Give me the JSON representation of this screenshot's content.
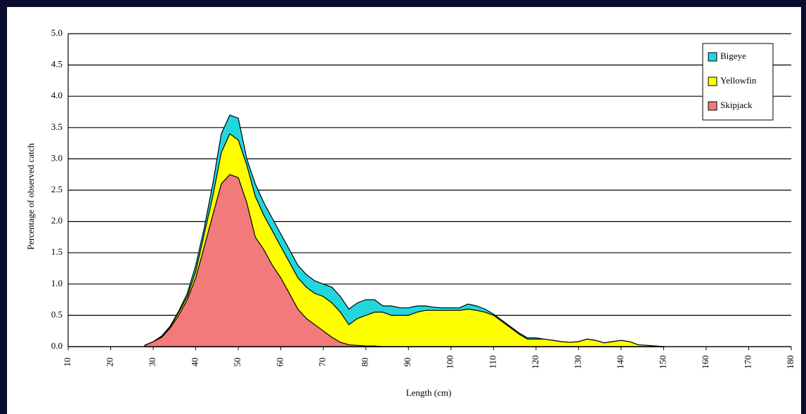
{
  "chart_data": {
    "type": "stacked-area",
    "x_label": "Length (cm)",
    "y_label": "Percentage of observed catch",
    "x": [
      28,
      30,
      32,
      34,
      36,
      38,
      40,
      42,
      44,
      46,
      48,
      50,
      52,
      54,
      56,
      58,
      60,
      62,
      64,
      66,
      68,
      70,
      72,
      74,
      76,
      78,
      80,
      82,
      84,
      86,
      88,
      90,
      92,
      94,
      96,
      98,
      100,
      102,
      104,
      106,
      108,
      110,
      112,
      114,
      116,
      118,
      120,
      122,
      124,
      126,
      128,
      130,
      132,
      134,
      136,
      138,
      140,
      142,
      144,
      146,
      148,
      150
    ],
    "series": [
      {
        "name": "Skipjack",
        "color": "#f27a7a",
        "values": [
          0.02,
          0.08,
          0.15,
          0.3,
          0.5,
          0.75,
          1.1,
          1.6,
          2.1,
          2.6,
          2.75,
          2.7,
          2.3,
          1.75,
          1.55,
          1.3,
          1.1,
          0.85,
          0.6,
          0.45,
          0.35,
          0.25,
          0.15,
          0.07,
          0.03,
          0.02,
          0.01,
          0.01,
          0,
          0,
          0,
          0,
          0,
          0,
          0,
          0,
          0,
          0,
          0,
          0,
          0,
          0,
          0,
          0,
          0,
          0,
          0,
          0,
          0,
          0,
          0,
          0,
          0,
          0,
          0,
          0,
          0,
          0,
          0,
          0,
          0,
          0
        ]
      },
      {
        "name": "Yellowfin",
        "color": "#ffff00",
        "values": [
          0,
          0,
          0.01,
          0.02,
          0.05,
          0.05,
          0.1,
          0.2,
          0.3,
          0.5,
          0.65,
          0.6,
          0.6,
          0.65,
          0.55,
          0.55,
          0.5,
          0.5,
          0.5,
          0.5,
          0.5,
          0.55,
          0.55,
          0.48,
          0.32,
          0.43,
          0.49,
          0.54,
          0.55,
          0.5,
          0.5,
          0.5,
          0.55,
          0.58,
          0.58,
          0.58,
          0.58,
          0.58,
          0.6,
          0.58,
          0.55,
          0.5,
          0.4,
          0.3,
          0.2,
          0.12,
          0.12,
          0.12,
          0.1,
          0.08,
          0.07,
          0.08,
          0.12,
          0.1,
          0.06,
          0.08,
          0.1,
          0.08,
          0.03,
          0.02,
          0.01,
          0
        ]
      },
      {
        "name": "Bigeye",
        "color": "#22d6de",
        "values": [
          0,
          0,
          0.01,
          0.01,
          0.02,
          0.05,
          0.1,
          0.1,
          0.2,
          0.3,
          0.3,
          0.35,
          0.1,
          0.2,
          0.2,
          0.2,
          0.2,
          0.2,
          0.2,
          0.2,
          0.2,
          0.2,
          0.25,
          0.25,
          0.25,
          0.25,
          0.25,
          0.2,
          0.1,
          0.15,
          0.12,
          0.12,
          0.1,
          0.07,
          0.05,
          0.04,
          0.04,
          0.04,
          0.08,
          0.07,
          0.05,
          0.02,
          0.02,
          0.02,
          0.02,
          0.02,
          0.02,
          0,
          0,
          0,
          0,
          0,
          0,
          0,
          0,
          0,
          0,
          0,
          0,
          0,
          0,
          0
        ]
      }
    ],
    "xlim": [
      10,
      180
    ],
    "xticks": [
      10,
      20,
      30,
      40,
      50,
      60,
      70,
      80,
      90,
      100,
      110,
      120,
      130,
      140,
      150,
      160,
      170,
      180
    ],
    "ylim": [
      0,
      5
    ],
    "yticks": [
      {
        "value": 0,
        "label": "0.0"
      },
      0.5,
      {
        "value": 1,
        "label": "1.0"
      },
      1.5,
      {
        "value": 2,
        "label": "2.0"
      },
      2.5,
      {
        "value": 3,
        "label": "3.0"
      },
      3.5,
      {
        "value": 4,
        "label": "4.0"
      },
      4.5,
      {
        "value": 5,
        "label": "5.0"
      }
    ],
    "grid": true,
    "legend": "top-right"
  }
}
